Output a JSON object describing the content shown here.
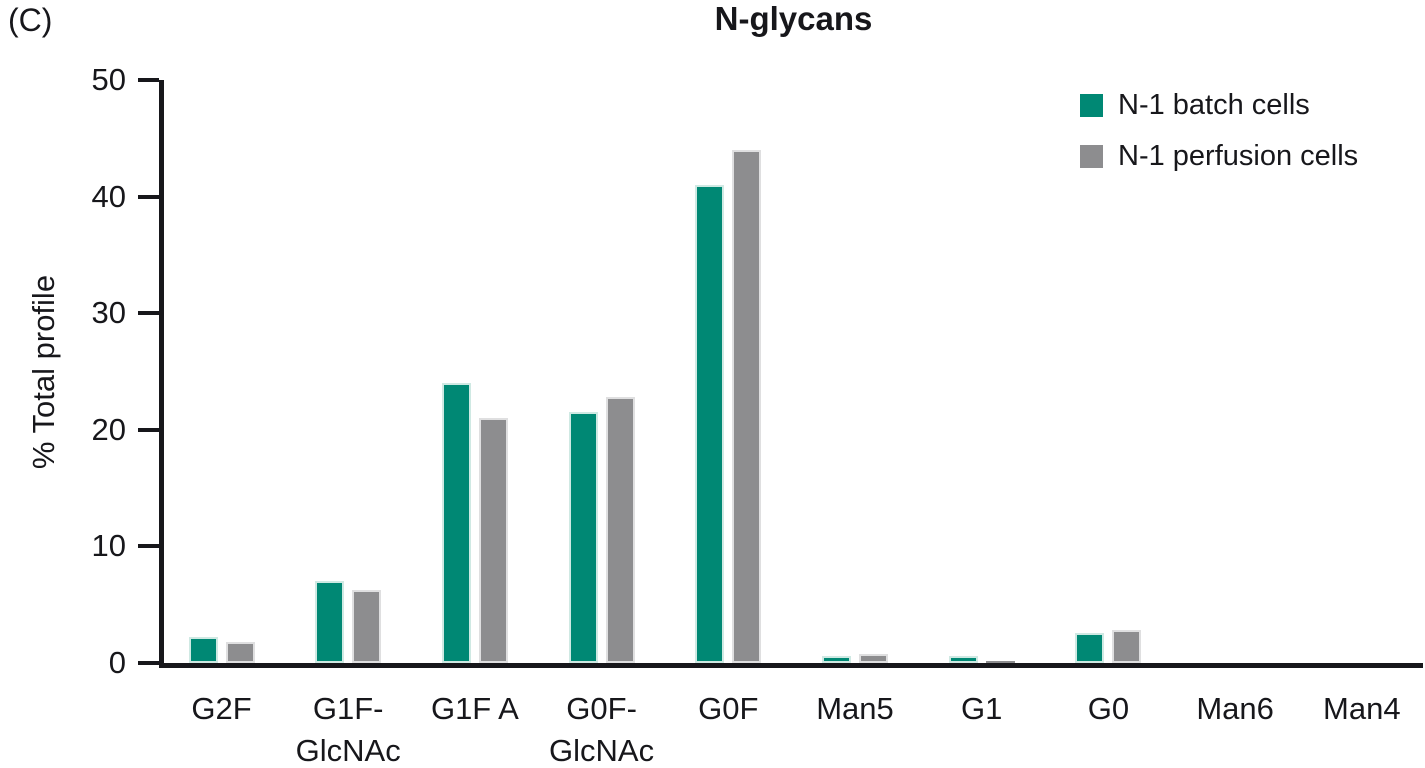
{
  "panel_label": "(C)",
  "chart_data": {
    "type": "bar",
    "title": "N-glycans",
    "xlabel": "",
    "ylabel": "% Total profile",
    "ylim": [
      0,
      50
    ],
    "yticks": [
      0,
      10,
      20,
      30,
      40,
      50
    ],
    "grid": false,
    "legend_position": "top-right",
    "axis_color": "#17171b",
    "background_color": "#ffffff",
    "categories": [
      "G2F",
      "G1F-\nGlcNAc",
      "G1F A",
      "G0F-\nGlcNAc",
      "G0F",
      "Man5",
      "G1",
      "G0",
      "Man6",
      "Man4"
    ],
    "series": [
      {
        "name": "N-1 batch cells",
        "color": "#008874",
        "edge_color": "#cfe9e3",
        "values": [
          2.2,
          7.0,
          24.0,
          21.5,
          41.0,
          0.6,
          0.6,
          2.6,
          0,
          0
        ]
      },
      {
        "name": "N-1 perfusion cells",
        "color": "#8d8d8f",
        "edge_color": "#dfdfe0",
        "values": [
          1.8,
          6.3,
          21.0,
          22.8,
          44.0,
          0.8,
          0.2,
          2.8,
          0,
          0
        ]
      }
    ]
  }
}
